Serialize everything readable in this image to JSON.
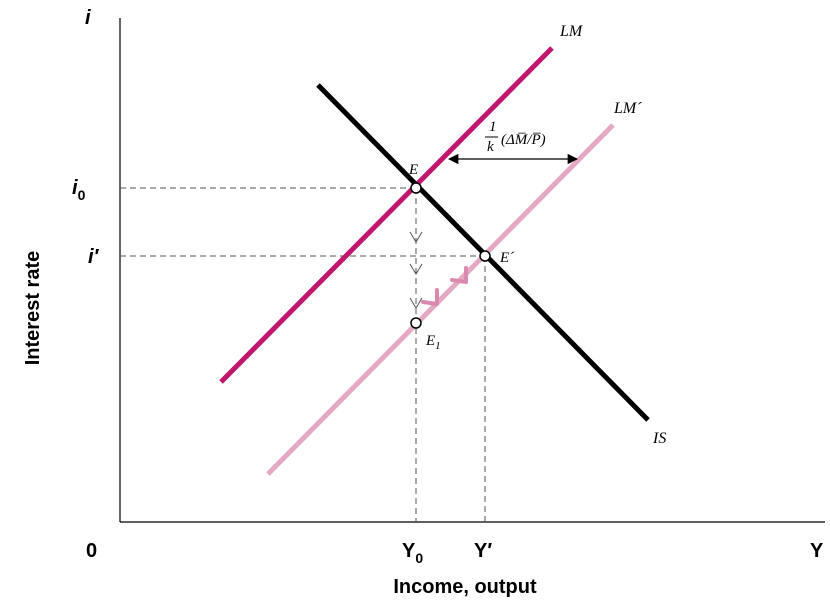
{
  "axes": {
    "y_axis_top_label": "i",
    "x_axis_end_label": "Y",
    "origin_label": "0",
    "y_title": "Interest rate",
    "x_title": "Income, output"
  },
  "ticks": {
    "i0": {
      "base": "i",
      "sub": "0"
    },
    "i_prime": "i′",
    "y0": {
      "base": "Y",
      "sub": "0"
    },
    "y_prime": "Y′"
  },
  "curves": {
    "LM": "LM",
    "LM_prime": "LM´",
    "IS": "IS"
  },
  "points": {
    "E": "E",
    "E_prime": "E´",
    "E1": {
      "base": "E",
      "sub": "1"
    }
  },
  "shift_label": {
    "numerator": "1",
    "denominator": "k",
    "expression": "(ΔM̅/P̅)"
  },
  "colors": {
    "lm": "#c0166e",
    "lm_prime": "#e3a9c2",
    "is": "#000000",
    "axis": "#000000",
    "guide": "#555555",
    "path_arrow": "#d98aae"
  }
}
